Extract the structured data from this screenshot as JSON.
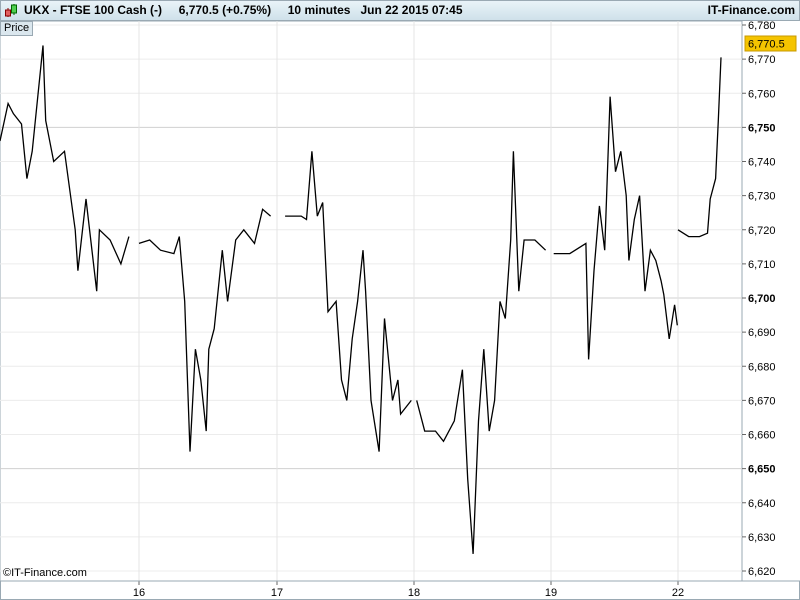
{
  "header": {
    "title": "UKX - FTSE 100 Cash (-)     6,770.5 (+0.75%)     10 minutes   Jun 22 2015 07:45",
    "brand": "IT-Finance.com"
  },
  "panel_label": "Price",
  "copyright": "©IT-Finance.com",
  "colors": {
    "line": "#000000",
    "last_price_bg": "#f5c400",
    "grid": "#e4e4e4",
    "header_bg": "#d6e7ef"
  },
  "chart_data": {
    "type": "line",
    "title": "UKX - FTSE 100 Cash (-)",
    "last_price_label": "6,770.5",
    "ylim": [
      6620,
      6780
    ],
    "y_ticks": [
      "6,780",
      "6,770",
      "6,760",
      "6,750",
      "6,740",
      "6,730",
      "6,720",
      "6,710",
      "6,700",
      "6,690",
      "6,680",
      "6,670",
      "6,660",
      "6,650",
      "6,640",
      "6,630",
      "6,620"
    ],
    "y_ticks_bold": [
      "6,750",
      "6,700",
      "6,650"
    ],
    "x_ticks": [
      "16",
      "17",
      "18",
      "19",
      "22"
    ],
    "grid": true,
    "series": [
      {
        "points": [
          [
            "15",
            "08:00",
            6746
          ],
          [
            "15",
            "08:30",
            6757
          ],
          [
            "15",
            "08:50",
            6754
          ],
          [
            "15",
            "09:20",
            6751
          ],
          [
            "15",
            "09:40",
            6735
          ],
          [
            "15",
            "10:00",
            6743
          ],
          [
            "15",
            "10:40",
            6774
          ],
          [
            "15",
            "10:50",
            6752
          ],
          [
            "15",
            "11:20",
            6740
          ],
          [
            "15",
            "12:00",
            6743
          ],
          [
            "15",
            "12:40",
            6720
          ],
          [
            "15",
            "12:50",
            6708
          ],
          [
            "15",
            "13:20",
            6729
          ],
          [
            "15",
            "14:00",
            6702
          ],
          [
            "15",
            "14:10",
            6720
          ],
          [
            "15",
            "14:50",
            6717
          ],
          [
            "15",
            "15:30",
            6710
          ],
          [
            "15",
            "16:00",
            6718
          ],
          [
            "16",
            "08:00",
            6716
          ],
          [
            "16",
            "08:40",
            6717
          ],
          [
            "16",
            "09:20",
            6714
          ],
          [
            "16",
            "10:10",
            6713
          ],
          [
            "16",
            "10:30",
            6718
          ],
          [
            "16",
            "10:50",
            6699
          ],
          [
            "16",
            "11:10",
            6655
          ],
          [
            "16",
            "11:30",
            6685
          ],
          [
            "16",
            "11:50",
            6676
          ],
          [
            "16",
            "12:10",
            6661
          ],
          [
            "16",
            "12:20",
            6685
          ],
          [
            "16",
            "12:40",
            6691
          ],
          [
            "16",
            "13:10",
            6714
          ],
          [
            "16",
            "13:30",
            6699
          ],
          [
            "16",
            "14:00",
            6717
          ],
          [
            "16",
            "14:30",
            6720
          ],
          [
            "16",
            "15:10",
            6716
          ],
          [
            "16",
            "15:40",
            6726
          ],
          [
            "16",
            "16:10",
            6724
          ],
          [
            "17",
            "08:30",
            6724
          ],
          [
            "17",
            "09:30",
            6724
          ],
          [
            "17",
            "09:50",
            6723
          ],
          [
            "17",
            "10:10",
            6743
          ],
          [
            "17",
            "10:30",
            6724
          ],
          [
            "17",
            "10:50",
            6728
          ],
          [
            "17",
            "11:10",
            6696
          ],
          [
            "17",
            "11:40",
            6699
          ],
          [
            "17",
            "12:00",
            6676
          ],
          [
            "17",
            "12:20",
            6670
          ],
          [
            "17",
            "12:40",
            6688
          ],
          [
            "17",
            "13:00",
            6699
          ],
          [
            "17",
            "13:20",
            6714
          ],
          [
            "17",
            "13:30",
            6702
          ],
          [
            "17",
            "13:50",
            6670
          ],
          [
            "17",
            "14:20",
            6655
          ],
          [
            "17",
            "14:40",
            6694
          ],
          [
            "17",
            "15:10",
            6670
          ],
          [
            "17",
            "15:30",
            6676
          ],
          [
            "17",
            "15:40",
            6666
          ],
          [
            "17",
            "16:20",
            6670
          ],
          [
            "18",
            "08:10",
            6670
          ],
          [
            "18",
            "08:40",
            6661
          ],
          [
            "18",
            "09:20",
            6661
          ],
          [
            "18",
            "09:50",
            6658
          ],
          [
            "18",
            "10:30",
            6664
          ],
          [
            "18",
            "11:00",
            6679
          ],
          [
            "18",
            "11:20",
            6647
          ],
          [
            "18",
            "11:40",
            6625
          ],
          [
            "18",
            "12:00",
            6664
          ],
          [
            "18",
            "12:20",
            6685
          ],
          [
            "18",
            "12:40",
            6661
          ],
          [
            "18",
            "13:00",
            6670
          ],
          [
            "18",
            "13:20",
            6699
          ],
          [
            "18",
            "13:40",
            6694
          ],
          [
            "18",
            "14:00",
            6717
          ],
          [
            "18",
            "14:10",
            6743
          ],
          [
            "18",
            "14:30",
            6702
          ],
          [
            "18",
            "14:50",
            6717
          ],
          [
            "18",
            "15:30",
            6717
          ],
          [
            "18",
            "16:10",
            6714
          ],
          [
            "19",
            "08:10",
            6713
          ],
          [
            "19",
            "09:10",
            6713
          ],
          [
            "19",
            "10:10",
            6716
          ],
          [
            "19",
            "10:20",
            6682
          ],
          [
            "19",
            "10:40",
            6708
          ],
          [
            "19",
            "11:00",
            6727
          ],
          [
            "19",
            "11:20",
            6714
          ],
          [
            "19",
            "11:40",
            6759
          ],
          [
            "19",
            "12:00",
            6737
          ],
          [
            "19",
            "12:20",
            6743
          ],
          [
            "19",
            "12:40",
            6730
          ],
          [
            "19",
            "12:50",
            6711
          ],
          [
            "19",
            "13:10",
            6723
          ],
          [
            "19",
            "13:30",
            6730
          ],
          [
            "19",
            "13:50",
            6702
          ],
          [
            "19",
            "14:10",
            6714
          ],
          [
            "19",
            "14:30",
            6711
          ],
          [
            "19",
            "14:50",
            6705
          ],
          [
            "19",
            "15:00",
            6701
          ],
          [
            "19",
            "15:20",
            6688
          ],
          [
            "19",
            "15:40",
            6698
          ],
          [
            "19",
            "15:50",
            6692
          ],
          [
            "22",
            "08:00",
            6720
          ],
          [
            "22",
            "08:40",
            6718
          ],
          [
            "22",
            "09:20",
            6718
          ],
          [
            "22",
            "09:50",
            6719
          ],
          [
            "22",
            "10:00",
            6729
          ],
          [
            "22",
            "10:20",
            6735
          ],
          [
            "22",
            "10:30",
            6752
          ],
          [
            "22",
            "10:40",
            6770.5
          ]
        ]
      }
    ]
  }
}
